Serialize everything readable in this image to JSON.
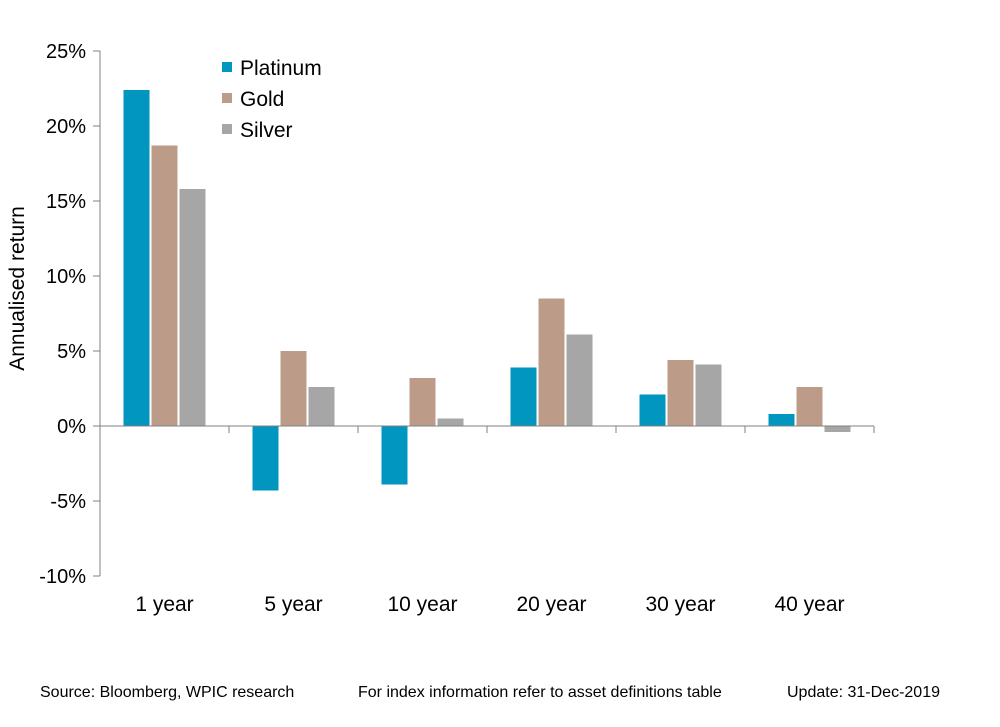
{
  "chart_data": {
    "type": "bar",
    "categories": [
      "1 year",
      "5 year",
      "10 year",
      "20 year",
      "30 year",
      "40 year"
    ],
    "series": [
      {
        "name": "Platinum",
        "color": "#0096BF",
        "values": [
          22.4,
          -4.3,
          -3.9,
          3.9,
          2.1,
          0.8
        ]
      },
      {
        "name": "Gold",
        "color": "#BC9C88",
        "values": [
          18.7,
          5.0,
          3.2,
          8.5,
          4.4,
          2.6
        ]
      },
      {
        "name": "Silver",
        "color": "#A6A6A6",
        "values": [
          15.8,
          2.6,
          0.5,
          6.1,
          4.1,
          -0.4
        ]
      }
    ],
    "ylabel": "Annualised return",
    "ylim": [
      -10,
      25
    ],
    "yticks": [
      -10,
      -5,
      0,
      5,
      10,
      15,
      20,
      25
    ],
    "ytick_labels": [
      "-10%",
      "-5%",
      "0%",
      "5%",
      "10%",
      "15%",
      "20%",
      "25%"
    ],
    "legend_position": "top-left",
    "grid": false
  },
  "footer": {
    "source": "Source: Bloomberg, WPIC research",
    "note": "For index information refer to asset definitions table",
    "update": "Update: 31-Dec-2019"
  }
}
